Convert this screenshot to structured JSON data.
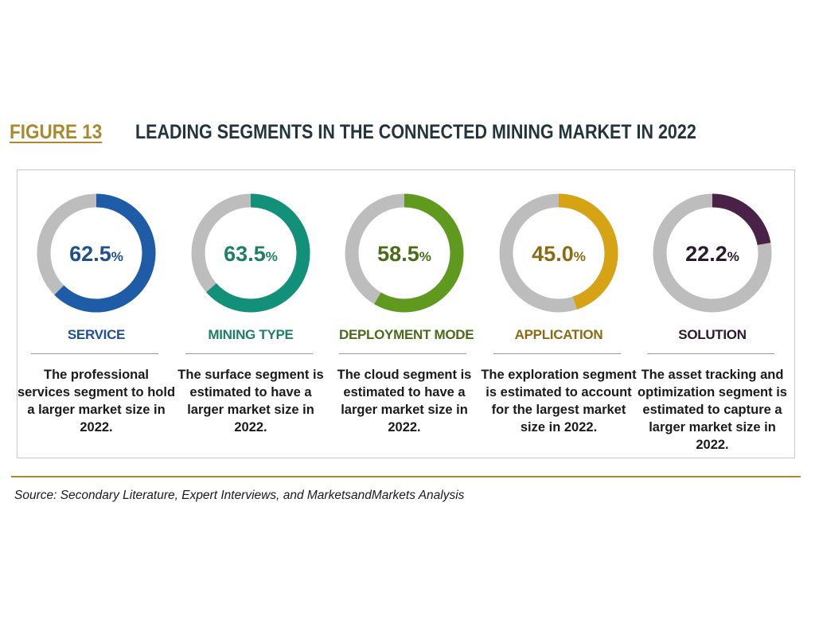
{
  "figure": {
    "label": "FIGURE 13",
    "title": "LEADING SEGMENTS IN THE CONNECTED MINING MARKET IN 2022"
  },
  "chart_data": {
    "type": "pie",
    "title": "LEADING SEGMENTS IN THE CONNECTED MINING MARKET IN 2022",
    "ring_color": "#bdbdbd",
    "segments": [
      {
        "category": "SERVICE",
        "value": 62.5,
        "label": "62.5",
        "unit": "%",
        "color": "#1f5ca8",
        "description": "The professional services segment to hold a larger market size in 2022."
      },
      {
        "category": "MINING TYPE",
        "value": 63.5,
        "label": "63.5",
        "unit": "%",
        "color": "#12907a",
        "description": "The surface segment is estimated to have a larger market size in 2022."
      },
      {
        "category": "DEPLOYMENT MODE",
        "value": 58.5,
        "label": "58.5",
        "unit": "%",
        "color": "#5f9a1e",
        "description": "The cloud segment is estimated to have a larger market size in 2022."
      },
      {
        "category": "APPLICATION",
        "value": 45.0,
        "label": "45.0",
        "unit": "%",
        "color": "#d6a314",
        "description": "The exploration segment is estimated to account for the largest market size in 2022."
      },
      {
        "category": "SOLUTION",
        "value": 22.2,
        "label": "22.2",
        "unit": "%",
        "color": "#4a2248",
        "description": "The asset tracking and optimization segment is estimated to capture a larger market size in 2022."
      }
    ]
  },
  "text_colors": {
    "SERVICE": "#1f4f8f",
    "MINING TYPE": "#1f7f66",
    "DEPLOYMENT MODE": "#4a6b1a",
    "APPLICATION": "#8a6a12",
    "SOLUTION": "#2a1a2e"
  },
  "source": "Source: Secondary Literature, Expert Interviews, and MarketsandMarkets Analysis"
}
